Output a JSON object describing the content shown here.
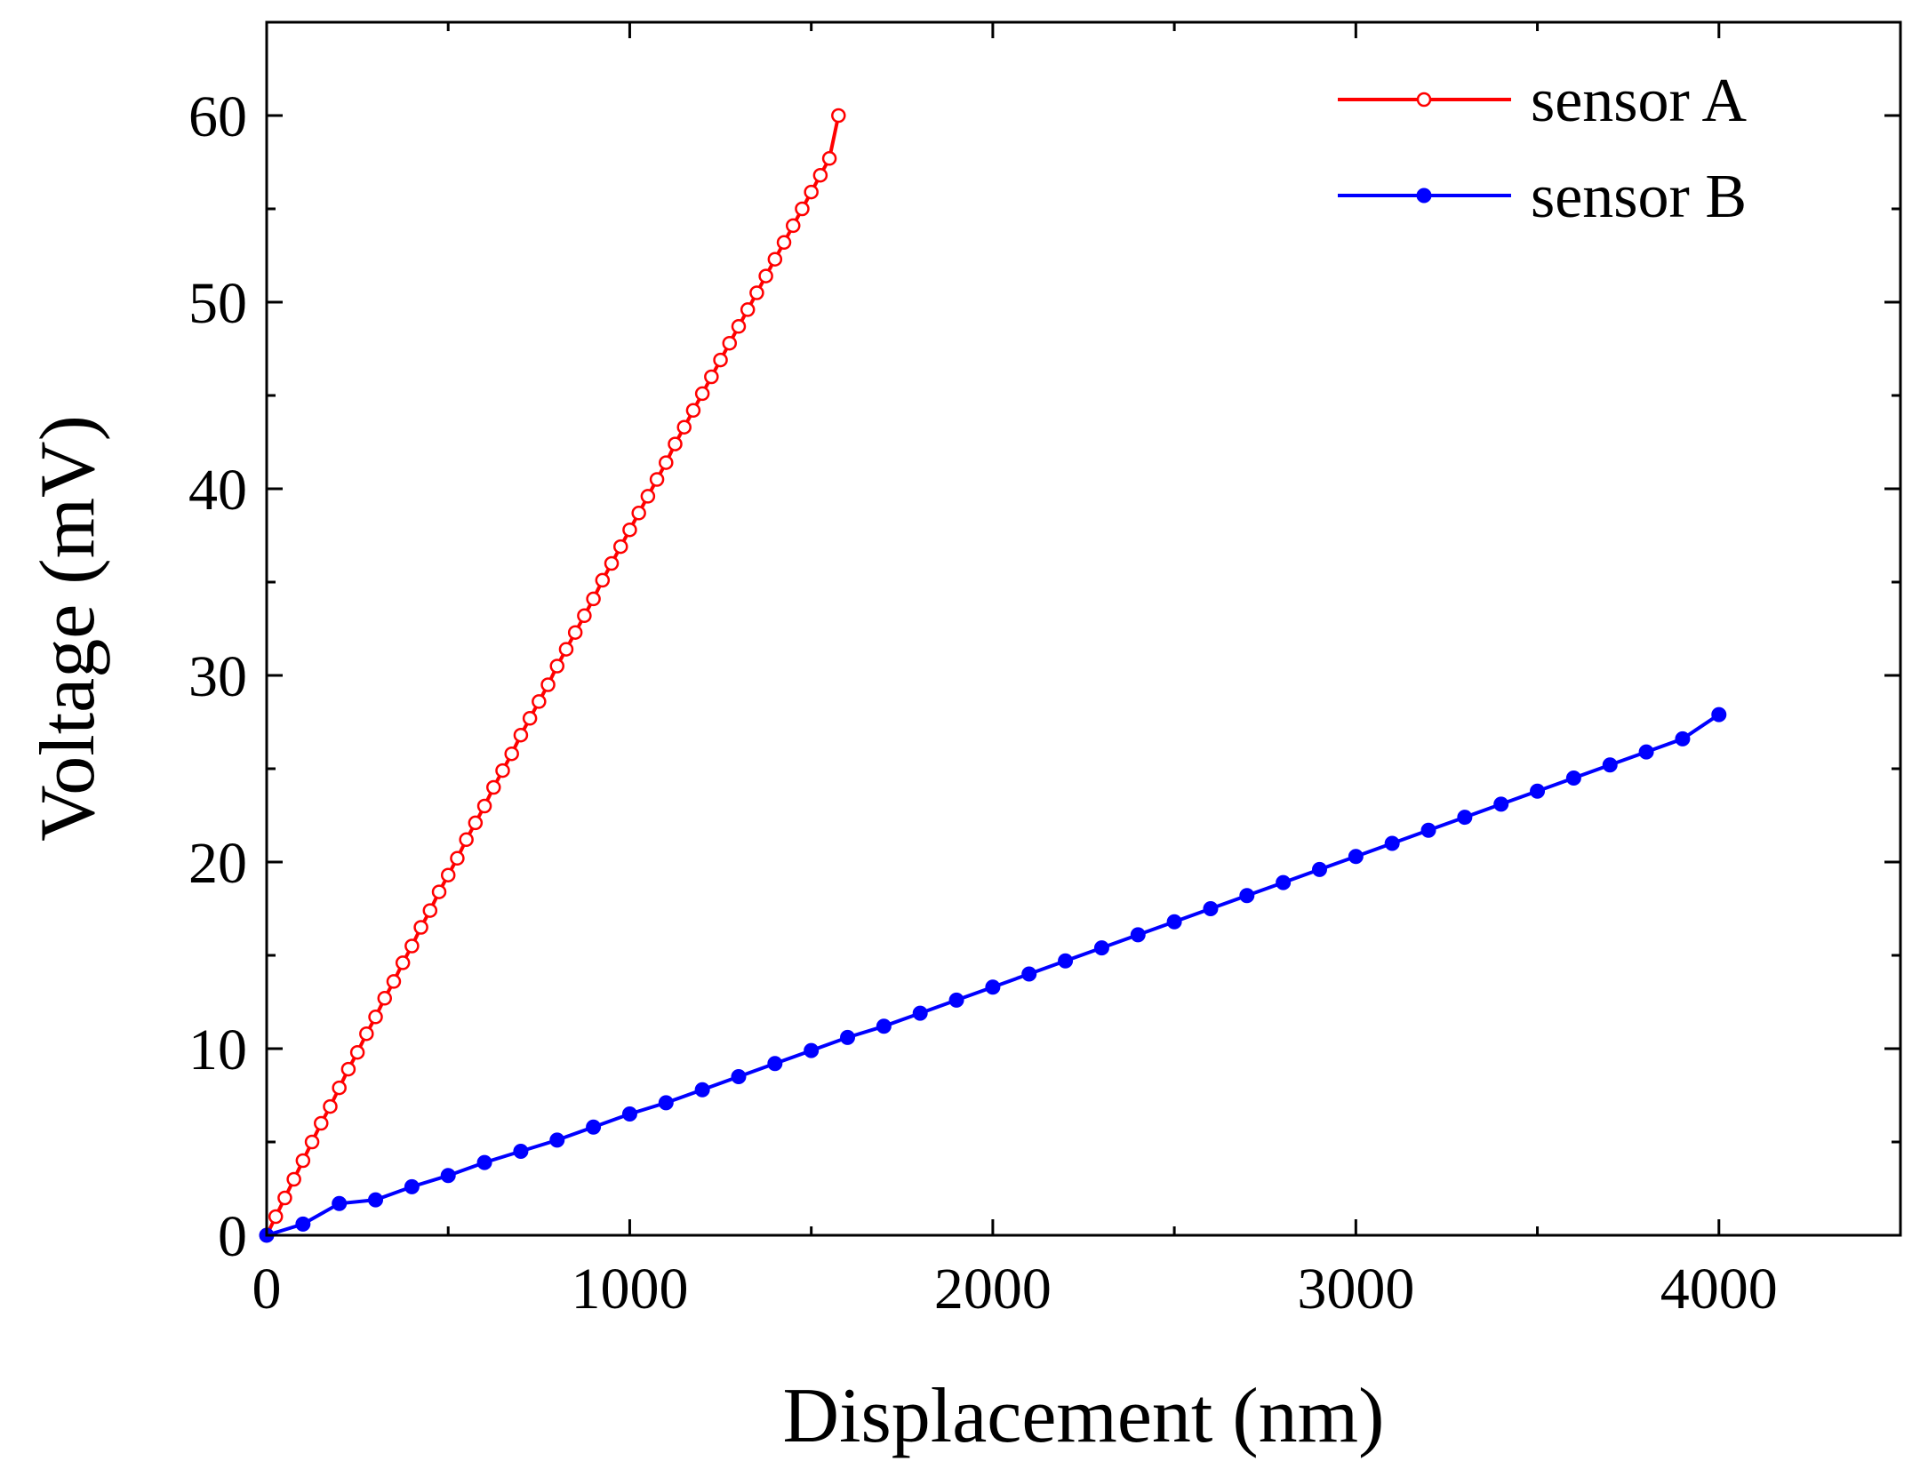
{
  "chart_data": {
    "type": "line",
    "title": "",
    "xlabel": "Displacement (nm)",
    "ylabel": "Voltage (mV)",
    "xlim": [
      0,
      4500
    ],
    "ylim": [
      0,
      65
    ],
    "xticks": [
      0,
      1000,
      2000,
      3000,
      4000
    ],
    "xtick_labels": [
      "0",
      "1000",
      "2000",
      "3000",
      "4000"
    ],
    "yticks": [
      0,
      10,
      20,
      30,
      40,
      50,
      60
    ],
    "ytick_labels": [
      "0",
      "10",
      "20",
      "30",
      "40",
      "50",
      "60"
    ],
    "legend_position": "top-right",
    "grid": false,
    "series": [
      {
        "name": "sensor A",
        "color": "#ff0000",
        "marker": "open-circle",
        "x": [
          0,
          25,
          50,
          75,
          100,
          125,
          150,
          175,
          200,
          225,
          250,
          275,
          300,
          325,
          350,
          375,
          400,
          425,
          450,
          475,
          500,
          525,
          550,
          575,
          600,
          625,
          650,
          675,
          700,
          725,
          750,
          775,
          800,
          825,
          850,
          875,
          900,
          925,
          950,
          975,
          1000,
          1025,
          1050,
          1075,
          1100,
          1125,
          1150,
          1175,
          1200,
          1225,
          1250,
          1275,
          1300,
          1325,
          1350,
          1375,
          1400,
          1425,
          1450,
          1475,
          1500,
          1525,
          1550,
          1575
        ],
        "y": [
          0.0,
          1.0,
          2.0,
          3.0,
          4.0,
          5.0,
          6.0,
          6.9,
          7.9,
          8.9,
          9.8,
          10.8,
          11.7,
          12.7,
          13.6,
          14.6,
          15.5,
          16.5,
          17.4,
          18.4,
          19.3,
          20.2,
          21.2,
          22.1,
          23.0,
          24.0,
          24.9,
          25.8,
          26.8,
          27.7,
          28.6,
          29.5,
          30.5,
          31.4,
          32.3,
          33.2,
          34.1,
          35.1,
          36.0,
          36.9,
          37.8,
          38.7,
          39.6,
          40.5,
          41.4,
          42.4,
          43.3,
          44.2,
          45.1,
          46.0,
          46.9,
          47.8,
          48.7,
          49.6,
          50.5,
          51.4,
          52.3,
          53.2,
          54.1,
          55.0,
          55.9,
          56.8,
          57.7,
          60.0
        ]
      },
      {
        "name": "sensor B",
        "color": "#0000ff",
        "marker": "filled-circle",
        "x": [
          0,
          100,
          200,
          300,
          400,
          500,
          600,
          700,
          800,
          900,
          1000,
          1100,
          1200,
          1300,
          1400,
          1500,
          1600,
          1700,
          1800,
          1900,
          2000,
          2100,
          2200,
          2300,
          2400,
          2500,
          2600,
          2700,
          2800,
          2900,
          3000,
          3100,
          3200,
          3300,
          3400,
          3500,
          3600,
          3700,
          3800,
          3900,
          4000
        ],
        "y": [
          0.0,
          0.6,
          1.7,
          1.9,
          2.6,
          3.2,
          3.9,
          4.5,
          5.1,
          5.8,
          6.5,
          7.1,
          7.8,
          8.5,
          9.2,
          9.9,
          10.6,
          11.2,
          11.9,
          12.6,
          13.3,
          14.0,
          14.7,
          15.4,
          16.1,
          16.8,
          17.5,
          18.2,
          18.9,
          19.6,
          20.3,
          21.0,
          21.7,
          22.4,
          23.1,
          23.8,
          24.5,
          25.2,
          25.9,
          26.6,
          27.9
        ]
      }
    ]
  }
}
